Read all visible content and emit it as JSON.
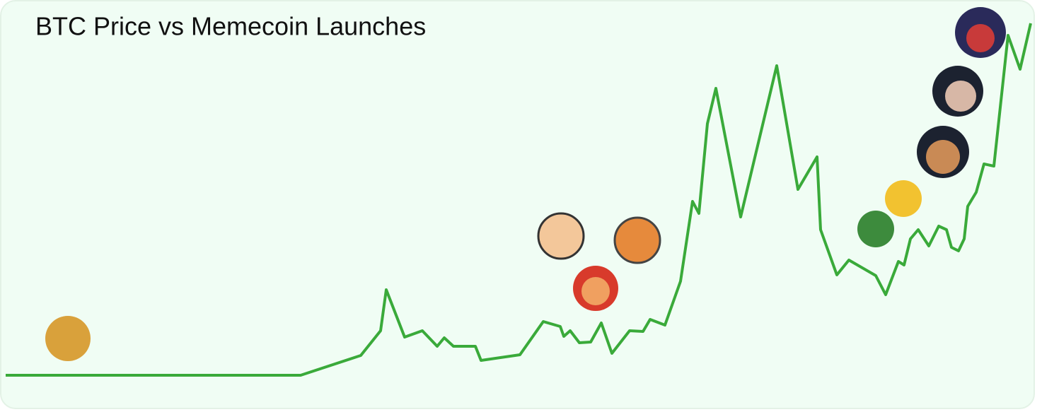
{
  "chart_data": {
    "type": "line",
    "title": "BTC Price vs Memecoin Launches",
    "x": [
      0,
      417,
      502,
      530,
      538,
      564,
      589,
      610,
      620,
      633,
      664,
      672,
      727,
      760,
      784,
      789,
      798,
      811,
      827,
      842,
      857,
      882,
      901,
      911,
      932,
      954,
      971,
      980,
      992,
      1004,
      1039,
      1090,
      1120,
      1147,
      1152,
      1175,
      1192,
      1230,
      1244,
      1262,
      1270,
      1279,
      1290,
      1305,
      1319,
      1330,
      1337,
      1347,
      1355,
      1360,
      1372,
      1383,
      1397,
      1417,
      1434,
      1449
    ],
    "series": [
      {
        "color": "#3aaa3a",
        "values": [
          0,
          0,
          28,
          63,
          121,
          54,
          63,
          41,
          53,
          41,
          41,
          21,
          29,
          76,
          69,
          55,
          63,
          46,
          47,
          74,
          31,
          63,
          62,
          79,
          71,
          133,
          246,
          229,
          356,
          406,
          224,
          438,
          263,
          309,
          206,
          142,
          163,
          141,
          114,
          161,
          156,
          193,
          206,
          183,
          211,
          206,
          181,
          176,
          193,
          239,
          259,
          299,
          296,
          481,
          433,
          498
        ]
      }
    ]
  }
}
